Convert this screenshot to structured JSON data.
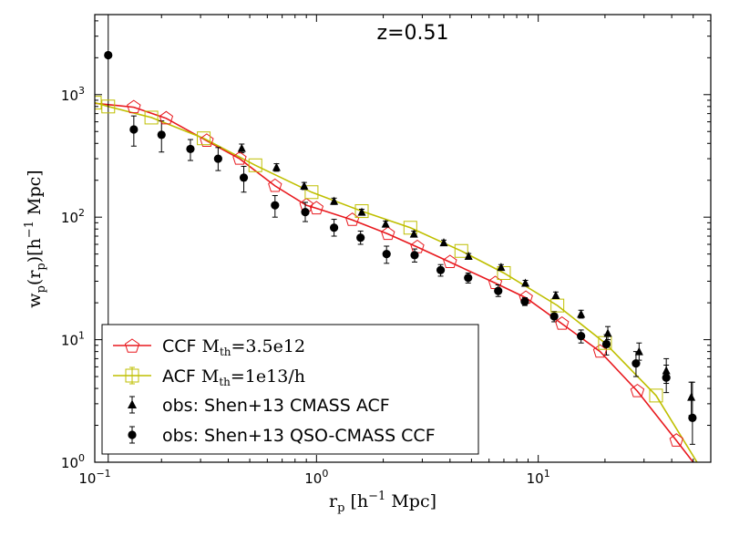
{
  "chart_data": {
    "type": "line",
    "title": "z=0.51",
    "xscale": "log",
    "yscale": "log",
    "xlim": [
      0.1,
      60
    ],
    "ylim": [
      1,
      4500
    ],
    "grid": false,
    "legend_placement": "lower-left",
    "x_ticks": [
      {
        "value": 0.1,
        "base": "10",
        "exp": "−1"
      },
      {
        "value": 1,
        "base": "10",
        "exp": "0"
      },
      {
        "value": 10,
        "base": "10",
        "exp": "1"
      }
    ],
    "y_ticks": [
      {
        "value": 1,
        "base": "10",
        "exp": "0"
      },
      {
        "value": 10,
        "base": "10",
        "exp": "1"
      },
      {
        "value": 100,
        "base": "10",
        "exp": "2"
      },
      {
        "value": 1000,
        "base": "10",
        "exp": "3"
      }
    ],
    "xlabel": {
      "main": "r",
      "sub": "p",
      "tail": " [h",
      "sup": "−1",
      "tail2": " Mpc]"
    },
    "ylabel": {
      "main": "w",
      "sub": "p",
      "mid": "(r",
      "sub2": "p",
      "tail": ")[h",
      "sup": "−1",
      "tail2": " Mpc]"
    },
    "series": [
      {
        "name": "CCF",
        "legend_math": "M",
        "legend_math_sub": "th",
        "legend_math_value": "=3.5e12",
        "color": "#e8191e",
        "marker": "pentagon",
        "x": [
          0.1,
          0.15,
          0.21,
          0.32,
          0.45,
          0.65,
          0.9,
          1.0,
          1.45,
          2.1,
          2.85,
          4.0,
          6.4,
          8.8,
          12.8,
          19.0,
          28.0,
          42.0,
          50.0
        ],
        "y": [
          850,
          790,
          640,
          420,
          300,
          180,
          125,
          118,
          95,
          73,
          57,
          43,
          29,
          22,
          13.5,
          8.0,
          3.8,
          1.5,
          1.0
        ]
      },
      {
        "name": "ACF",
        "legend_math": "M",
        "legend_math_sub": "th",
        "legend_math_value": "=1e13/h",
        "color": "#bfbf00",
        "marker": "square",
        "x": [
          0.1,
          0.115,
          0.18,
          0.31,
          0.53,
          0.95,
          1.6,
          2.65,
          4.5,
          7.0,
          12.2,
          20.0,
          34.0,
          52.0
        ],
        "y": [
          860,
          800,
          650,
          440,
          265,
          160,
          112,
          82,
          53,
          35,
          19,
          9.4,
          3.5,
          1.0
        ]
      },
      {
        "name": "obs: Shen+13 CMASS ACF",
        "color": "#000000",
        "marker": "triangle",
        "x": [
          0.46,
          0.66,
          0.88,
          1.2,
          1.6,
          2.05,
          2.75,
          3.75,
          4.85,
          6.8,
          8.75,
          12.0,
          15.6,
          20.6,
          28.5,
          37.8,
          49.0
        ],
        "y": [
          365,
          255,
          180,
          135,
          110,
          88,
          73,
          62,
          48,
          39,
          29,
          23,
          16.2,
          11.3,
          8.0,
          5.6,
          3.4
        ],
        "err_lo": [
          335,
          237,
          168,
          127,
          104,
          83,
          69,
          59,
          45.5,
          37,
          27.5,
          21.5,
          15,
          10,
          6.8,
          4.4,
          2.4
        ],
        "err_hi": [
          395,
          273,
          192,
          143,
          116,
          93,
          77,
          65,
          50.5,
          41,
          30.5,
          24.5,
          17.4,
          12.8,
          9.4,
          7.0,
          4.5
        ]
      },
      {
        "name": "obs: Shen+13 QSO-CMASS CCF",
        "color": "#000000",
        "marker": "circle",
        "x": [
          0.115,
          0.15,
          0.2,
          0.27,
          0.36,
          0.47,
          0.65,
          0.89,
          1.2,
          1.58,
          2.07,
          2.77,
          3.63,
          4.83,
          6.6,
          8.7,
          11.8,
          15.6,
          20.3,
          27.6,
          37.8,
          49.6
        ],
        "y": [
          2100,
          520,
          470,
          360,
          300,
          210,
          125,
          110,
          82,
          68,
          50,
          49,
          37,
          32,
          25,
          20.5,
          15.5,
          10.7,
          9.2,
          6.4,
          4.9,
          2.3
        ],
        "err_lo": [
          1,
          380,
          340,
          290,
          240,
          160,
          100,
          92,
          70,
          60,
          42,
          43,
          33,
          29,
          22.5,
          19,
          14,
          9.4,
          7.5,
          5.0,
          3.7,
          1.4
        ],
        "err_hi": [
          4500,
          670,
          610,
          430,
          370,
          260,
          150,
          132,
          96,
          77,
          58,
          55,
          41,
          35,
          28,
          22,
          17,
          12,
          11,
          8.0,
          6.2,
          4.5
        ]
      }
    ]
  }
}
